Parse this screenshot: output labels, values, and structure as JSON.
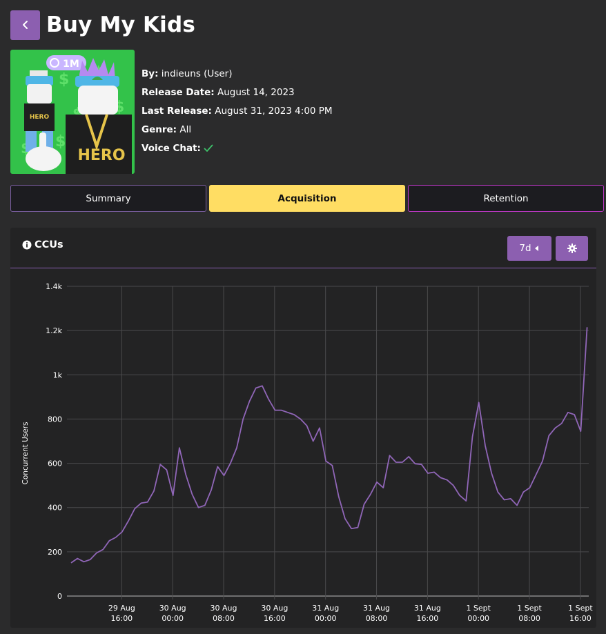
{
  "header": {
    "title": "Buy My Kids"
  },
  "thumbnail": {
    "badge_text": "1M",
    "chain_text_1": "HERO",
    "chain_text_2": "HERO"
  },
  "info": {
    "by_label": "By:",
    "by_value": "indieuns (User)",
    "release_label": "Release Date:",
    "release_value": "August 14, 2023",
    "last_release_label": "Last Release:",
    "last_release_value": "August 31, 2023 4:00 PM",
    "genre_label": "Genre:",
    "genre_value": "All",
    "voice_label": "Voice Chat:",
    "voice_enabled": true
  },
  "tabs": [
    {
      "label": "Summary",
      "active": false
    },
    {
      "label": "Acquisition",
      "active": true
    },
    {
      "label": "Retention",
      "active": false
    }
  ],
  "card": {
    "title": "CCUs",
    "range_label": "7d"
  },
  "colors": {
    "accent": "#8c5fb0",
    "active_tab": "#ffdd63",
    "line": "#9066b8"
  },
  "chart_data": {
    "type": "line",
    "title": "CCUs",
    "ylabel": "Concurrent Users",
    "xlabel": "",
    "ylim": [
      0,
      1400
    ],
    "xlim": [
      0,
      76
    ],
    "yticks": [
      0,
      200,
      400,
      600,
      800,
      1000,
      1200,
      1400
    ],
    "ytick_labels": [
      "0",
      "200",
      "400",
      "600",
      "800",
      "1k",
      "1.2k",
      "1.4k"
    ],
    "xticks": [
      {
        "x": 8,
        "line1": "29 Aug",
        "line2": "16:00"
      },
      {
        "x": 16,
        "line1": "30 Aug",
        "line2": "00:00"
      },
      {
        "x": 24,
        "line1": "30 Aug",
        "line2": "08:00"
      },
      {
        "x": 32,
        "line1": "30 Aug",
        "line2": "16:00"
      },
      {
        "x": 40,
        "line1": "31 Aug",
        "line2": "00:00"
      },
      {
        "x": 48,
        "line1": "31 Aug",
        "line2": "08:00"
      },
      {
        "x": 56,
        "line1": "31 Aug",
        "line2": "16:00"
      },
      {
        "x": 64,
        "line1": "1 Sept",
        "line2": "00:00"
      },
      {
        "x": 72,
        "line1": "1 Sept",
        "line2": "08:00"
      },
      {
        "x": 80,
        "line1": "1 Sept",
        "line2": "16:00"
      }
    ],
    "grid": true,
    "series": [
      {
        "values": [
          150,
          170,
          155,
          165,
          195,
          210,
          250,
          265,
          290,
          340,
          395,
          420,
          425,
          475,
          595,
          570,
          455,
          670,
          550,
          460,
          400,
          410,
          480,
          585,
          545,
          600,
          670,
          800,
          880,
          940,
          950,
          890,
          840,
          840,
          830,
          820,
          800,
          770,
          700,
          760,
          610,
          590,
          450,
          350,
          305,
          310,
          415,
          460,
          515,
          490,
          635,
          605,
          605,
          630,
          598,
          595,
          555,
          560,
          535,
          525,
          500,
          455,
          430,
          720,
          875,
          680,
          555,
          470,
          435,
          440,
          410,
          470,
          490,
          550,
          610,
          725,
          760,
          780,
          830,
          820,
          745,
          1215
        ]
      }
    ]
  }
}
